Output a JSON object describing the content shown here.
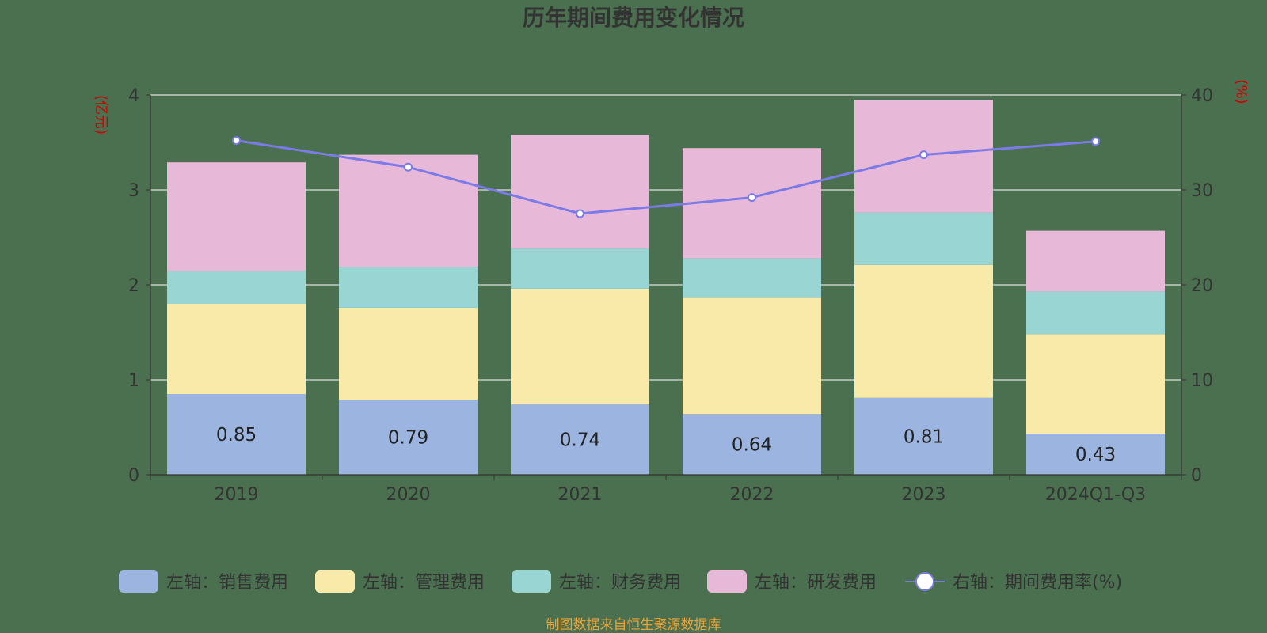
{
  "chart_data": {
    "type": "bar",
    "title": "历年期间费用变化情况",
    "categories": [
      "2019",
      "2020",
      "2021",
      "2022",
      "2023",
      "2024Q1-Q3"
    ],
    "left_axis": {
      "unit": "(亿元)",
      "range": [
        0,
        4
      ],
      "ticks": [
        "0",
        "1",
        "2",
        "3",
        "4"
      ]
    },
    "right_axis": {
      "unit": "(%)",
      "range": [
        0,
        40
      ],
      "ticks": [
        "0",
        "10",
        "20",
        "30",
        "40"
      ]
    },
    "grid": true,
    "legend_position": "bottom",
    "series": [
      {
        "name": "左轴：销售费用",
        "kind": "stacked-bar",
        "axis": "left",
        "color": "#9bb5e0",
        "values": [
          0.85,
          0.79,
          0.74,
          0.64,
          0.81,
          0.43
        ],
        "show_labels": true
      },
      {
        "name": "左轴：管理费用",
        "kind": "stacked-bar",
        "axis": "left",
        "color": "#faeaaa",
        "values": [
          0.95,
          0.97,
          1.22,
          1.23,
          1.4,
          1.05
        ]
      },
      {
        "name": "左轴：财务费用",
        "kind": "stacked-bar",
        "axis": "left",
        "color": "#99d5d3",
        "values": [
          0.35,
          0.43,
          0.42,
          0.41,
          0.55,
          0.45
        ]
      },
      {
        "name": "左轴：研发费用",
        "kind": "stacked-bar",
        "axis": "left",
        "color": "#e8b8d8",
        "values": [
          1.14,
          1.18,
          1.2,
          1.16,
          1.19,
          0.64
        ]
      },
      {
        "name": "右轴：期间费用率(%)",
        "kind": "line",
        "axis": "right",
        "color": "#7b7be8",
        "values": [
          35.2,
          32.4,
          27.5,
          29.2,
          33.7,
          35.1
        ]
      }
    ],
    "source": "制图数据来自恒生聚源数据库"
  }
}
